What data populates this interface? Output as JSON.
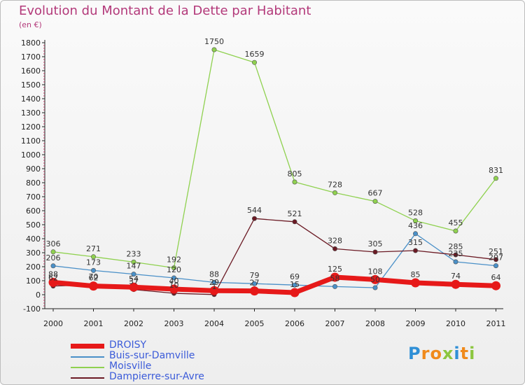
{
  "title": "Evolution du Montant de la Dette par Habitant",
  "subtitle": "(en €)",
  "logo": {
    "text": "Proxiti",
    "letters": [
      {
        "ch": "P",
        "color": "#2f8fd6"
      },
      {
        "ch": "r",
        "color": "#f08a1c"
      },
      {
        "ch": "o",
        "color": "#f08a1c"
      },
      {
        "ch": "x",
        "color": "#8cc63f"
      },
      {
        "ch": "i",
        "color": "#2f8fd6"
      },
      {
        "ch": "t",
        "color": "#f08a1c"
      },
      {
        "ch": "i",
        "color": "#8cc63f"
      }
    ]
  },
  "chart_data": {
    "type": "line",
    "title": "Evolution du Montant de la Dette par Habitant",
    "subtitle": "(en €)",
    "x": [
      "2000",
      "2001",
      "2002",
      "2003",
      "2004",
      "2005",
      "2006",
      "2007",
      "2008",
      "2009",
      "2010",
      "2011"
    ],
    "ylim": [
      -100,
      1800
    ],
    "yticks": [
      -100,
      0,
      100,
      200,
      300,
      400,
      500,
      600,
      700,
      800,
      900,
      1000,
      1100,
      1200,
      1300,
      1400,
      1500,
      1600,
      1700,
      1800
    ],
    "grid": false,
    "legend_position": "bottom-left",
    "series": [
      {
        "name": "DROISY",
        "color": "#e61919",
        "values": [
          88,
          62,
          54,
          40,
          29,
          27,
          15,
          125,
          108,
          85,
          74,
          64
        ],
        "labels": [
          "88",
          "62",
          "54",
          "40",
          "29",
          "27",
          "15",
          "125",
          "108",
          "85",
          "74",
          "64"
        ]
      },
      {
        "name": "Buis-sur-Damville",
        "color": "#4a90c8",
        "values": [
          206,
          173,
          147,
          120,
          88,
          79,
          69,
          58,
          50,
          436,
          235,
          207
        ],
        "labels": [
          "206",
          "173",
          "147",
          "120",
          "88",
          "79",
          "69",
          "58",
          "50",
          "436",
          "235",
          "207"
        ]
      },
      {
        "name": "Moisville",
        "color": "#8fd14f",
        "values": [
          306,
          271,
          233,
          192,
          1750,
          1659,
          805,
          728,
          667,
          528,
          455,
          831
        ],
        "labels": [
          "306",
          "271",
          "233",
          "192",
          "1750",
          "1659",
          "805",
          "728",
          "667",
          "528",
          "455",
          "831"
        ]
      },
      {
        "name": "Dampierre-sur-Avre",
        "color": "#6b1a24",
        "values": [
          62,
          70,
          37,
          10,
          1,
          544,
          521,
          328,
          305,
          315,
          285,
          251
        ],
        "labels": [
          "62",
          "70",
          "37",
          "10",
          "1",
          "544",
          "521",
          "328",
          "305",
          "315",
          "285",
          "251"
        ]
      }
    ]
  }
}
